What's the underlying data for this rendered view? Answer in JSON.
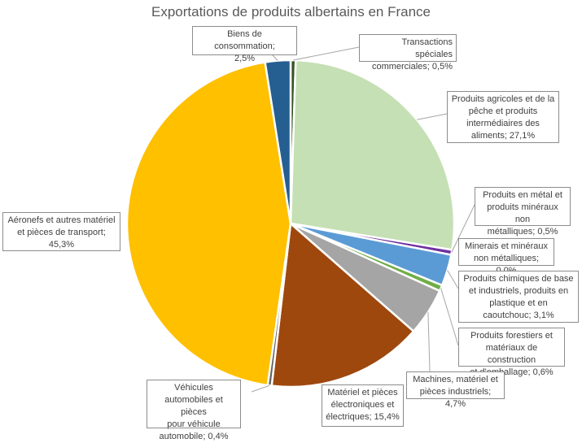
{
  "chart_data": {
    "type": "pie",
    "title": "Exportations de produits albertains en France",
    "slices": [
      {
        "name": "Transactions spéciales commerciales",
        "value": 0.5,
        "label": "Transactions spéciales\ncommerciales; 0,5%",
        "color": "#375623"
      },
      {
        "name": "Produits agricoles et de la pêche et produits intermédiaires des aliments",
        "value": 27.1,
        "label": "Produits agricoles et de la\npêche et produits\nintermédiaires des\naliments; 27,1%",
        "color": "#c5e0b4"
      },
      {
        "name": "Produits en métal et produits minéraux non métalliques",
        "value": 0.5,
        "label": "Produits en métal et\nproduits minéraux non\nmétalliques; 0,5%",
        "color": "#7030a0"
      },
      {
        "name": "Minerais et minéraux non métalliques",
        "value": 0.0,
        "label": "Minerais et minéraux\nnon métalliques; 0,0%",
        "color": "#1f4e79"
      },
      {
        "name": "Produits chimiques de base et industriels, produits en plastique et en caoutchouc",
        "value": 3.1,
        "label": "Produits chimiques de base\net industriels, produits en\nplastique et en\ncaoutchouc; 3,1%",
        "color": "#5b9bd5"
      },
      {
        "name": "Produits forestiers et matériaux de construction et d'emballage",
        "value": 0.6,
        "label": "Produits forestiers et\nmatériaux de construction\net d'emballage; 0,6%",
        "color": "#70ad47"
      },
      {
        "name": "Machines, matériel et pièces industriels",
        "value": 4.7,
        "label": "Machines, matériel et\npièces industriels; 4,7%",
        "color": "#a5a5a5"
      },
      {
        "name": "Matériel et pièces électroniques et électriques",
        "value": 15.4,
        "label": "Matériel et pièces\nélectroniques et\nélectriques; 15,4%",
        "color": "#9e480e"
      },
      {
        "name": "Véhicules automobiles et pièces pour véhicule automobile",
        "value": 0.4,
        "label": "Véhicules\nautomobiles et pièces\npour véhicule\nautomobile; 0,4%",
        "color": "#636363"
      },
      {
        "name": "Aéronefs et autres matériel et pièces de transport",
        "value": 45.3,
        "label": "Aéronefs et autres matériel\net pièces de transport;\n45,3%",
        "color": "#ffc000"
      },
      {
        "name": "Biens de consommation",
        "value": 2.5,
        "label": "Biens de consommation;\n2,5%",
        "color": "#255e91"
      }
    ]
  }
}
